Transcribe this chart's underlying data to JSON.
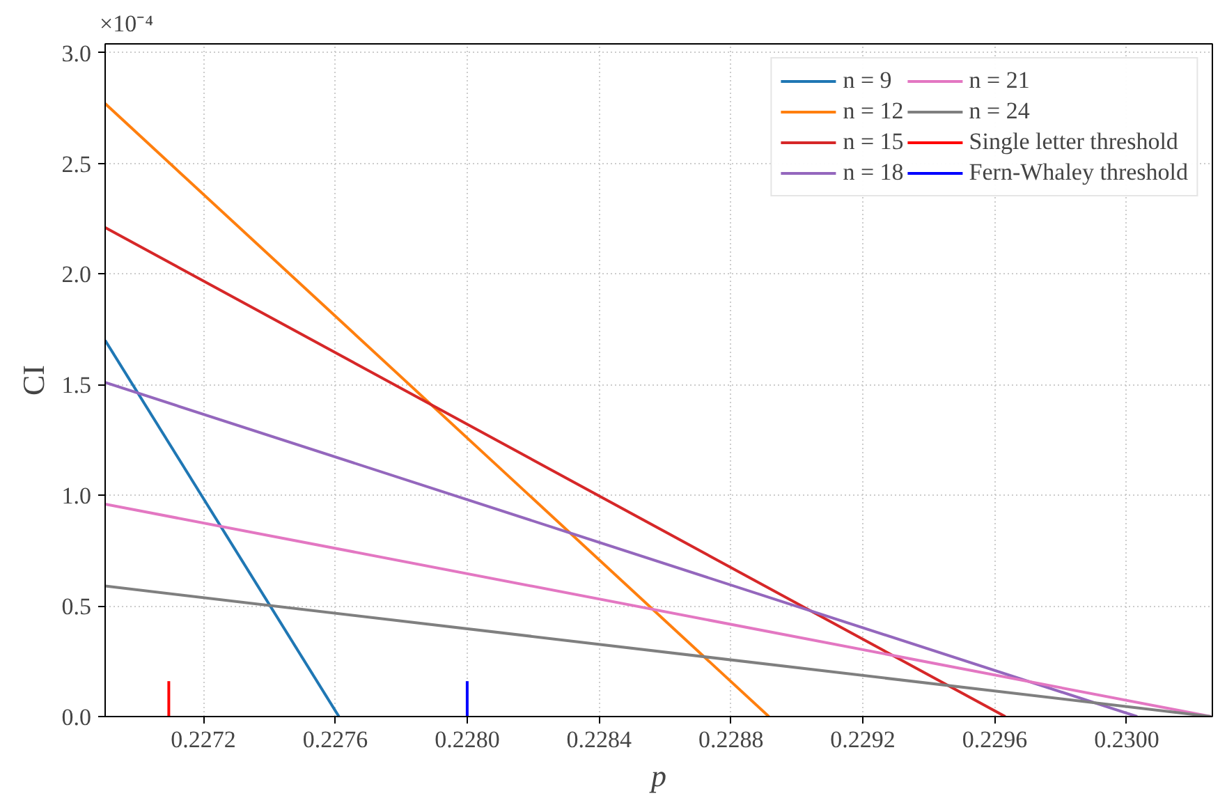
{
  "chart_data": {
    "type": "line",
    "xlabel": "p",
    "ylabel": "CI",
    "annotations": [
      "×10⁻⁴"
    ],
    "xlim": [
      0.226902,
      0.23026
    ],
    "ylim": [
      0,
      3.04
    ],
    "xticks": [
      0.2272,
      0.2276,
      {
        "value": 0.228,
        "label": "0.2280"
      },
      0.2284,
      0.2288,
      0.2292,
      0.2296,
      {
        "value": 0.23,
        "label": "0.2300"
      }
    ],
    "yticks": [
      {
        "value": 0,
        "label": "0.0"
      },
      0.5,
      {
        "value": 1,
        "label": "1.0"
      },
      1.5,
      {
        "value": 2,
        "label": "2.0"
      },
      2.5,
      {
        "value": 3,
        "label": "3.0"
      }
    ],
    "grid": true,
    "legend": "top right",
    "line_style": "solid",
    "series": [
      {
        "name": "n = 9",
        "color": "#1f77b4",
        "x": [
          0.226902,
          0.227611
        ],
        "values": [
          1.7,
          0
        ]
      },
      {
        "name": "n = 12",
        "color": "#ff7f0e",
        "x": [
          0.226902,
          0.228915
        ],
        "values": [
          2.77,
          0
        ]
      },
      {
        "name": "n = 15",
        "color": "#d62728",
        "x": [
          0.226902,
          0.229632
        ],
        "values": [
          2.21,
          0
        ]
      },
      {
        "name": "n = 18",
        "color": "#9467bd",
        "x": [
          0.226902,
          0.230032
        ],
        "values": [
          1.51,
          0
        ]
      },
      {
        "name": "n = 21",
        "color": "#e377c2",
        "x": [
          0.226902,
          0.230256
        ],
        "values": [
          0.96,
          0
        ]
      },
      {
        "name": "n = 24",
        "color": "#7f7f7f",
        "x": [
          0.226902,
          0.230256
        ],
        "values": [
          0.59,
          0
        ]
      },
      {
        "name": "Single letter threshold",
        "color": "#ff0000",
        "x": [
          0.227095,
          0.227095
        ],
        "values": [
          0,
          0.16
        ]
      },
      {
        "name": "Fern-Whaley threshold",
        "color": "#0000ff",
        "x": [
          0.228,
          0.228
        ],
        "values": [
          0,
          0.16
        ]
      }
    ]
  }
}
